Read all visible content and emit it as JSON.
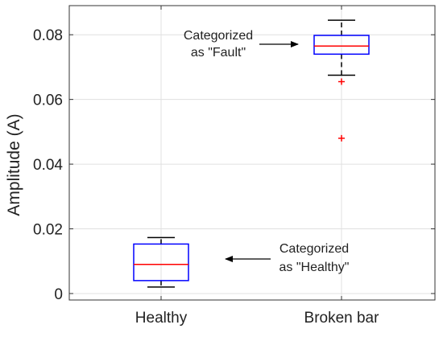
{
  "chart_data": {
    "type": "box",
    "title": "",
    "xlabel": "",
    "ylabel": "Amplitude (A)",
    "ylim": [
      -0.002,
      0.089
    ],
    "yticks": [
      0,
      0.02,
      0.04,
      0.06,
      0.08
    ],
    "ytick_labels": [
      "0",
      "0.02",
      "0.04",
      "0.06",
      "0.08"
    ],
    "categories": [
      "Healthy",
      "Broken bar"
    ],
    "grid": true,
    "boxes": [
      {
        "category": "Healthy",
        "whisker_low": 0.002,
        "q1": 0.004,
        "median": 0.009,
        "q3": 0.0153,
        "whisker_high": 0.0173,
        "outliers": []
      },
      {
        "category": "Broken bar",
        "whisker_low": 0.0675,
        "q1": 0.074,
        "median": 0.0765,
        "q3": 0.0798,
        "whisker_high": 0.0845,
        "outliers": [
          0.0655,
          0.048
        ]
      }
    ],
    "annotations": [
      {
        "line1": "Categorized",
        "line2": "as \"Fault\"",
        "points_to": "Broken bar"
      },
      {
        "line1": "Categorized",
        "line2": "as \"Healthy\"",
        "points_to": "Healthy"
      }
    ],
    "colors": {
      "box": "#0000ff",
      "median": "#ff0000",
      "whisker": "#000000",
      "outlier": "#ff0000",
      "grid": "#e0e0e0",
      "axes": "#333333"
    }
  }
}
